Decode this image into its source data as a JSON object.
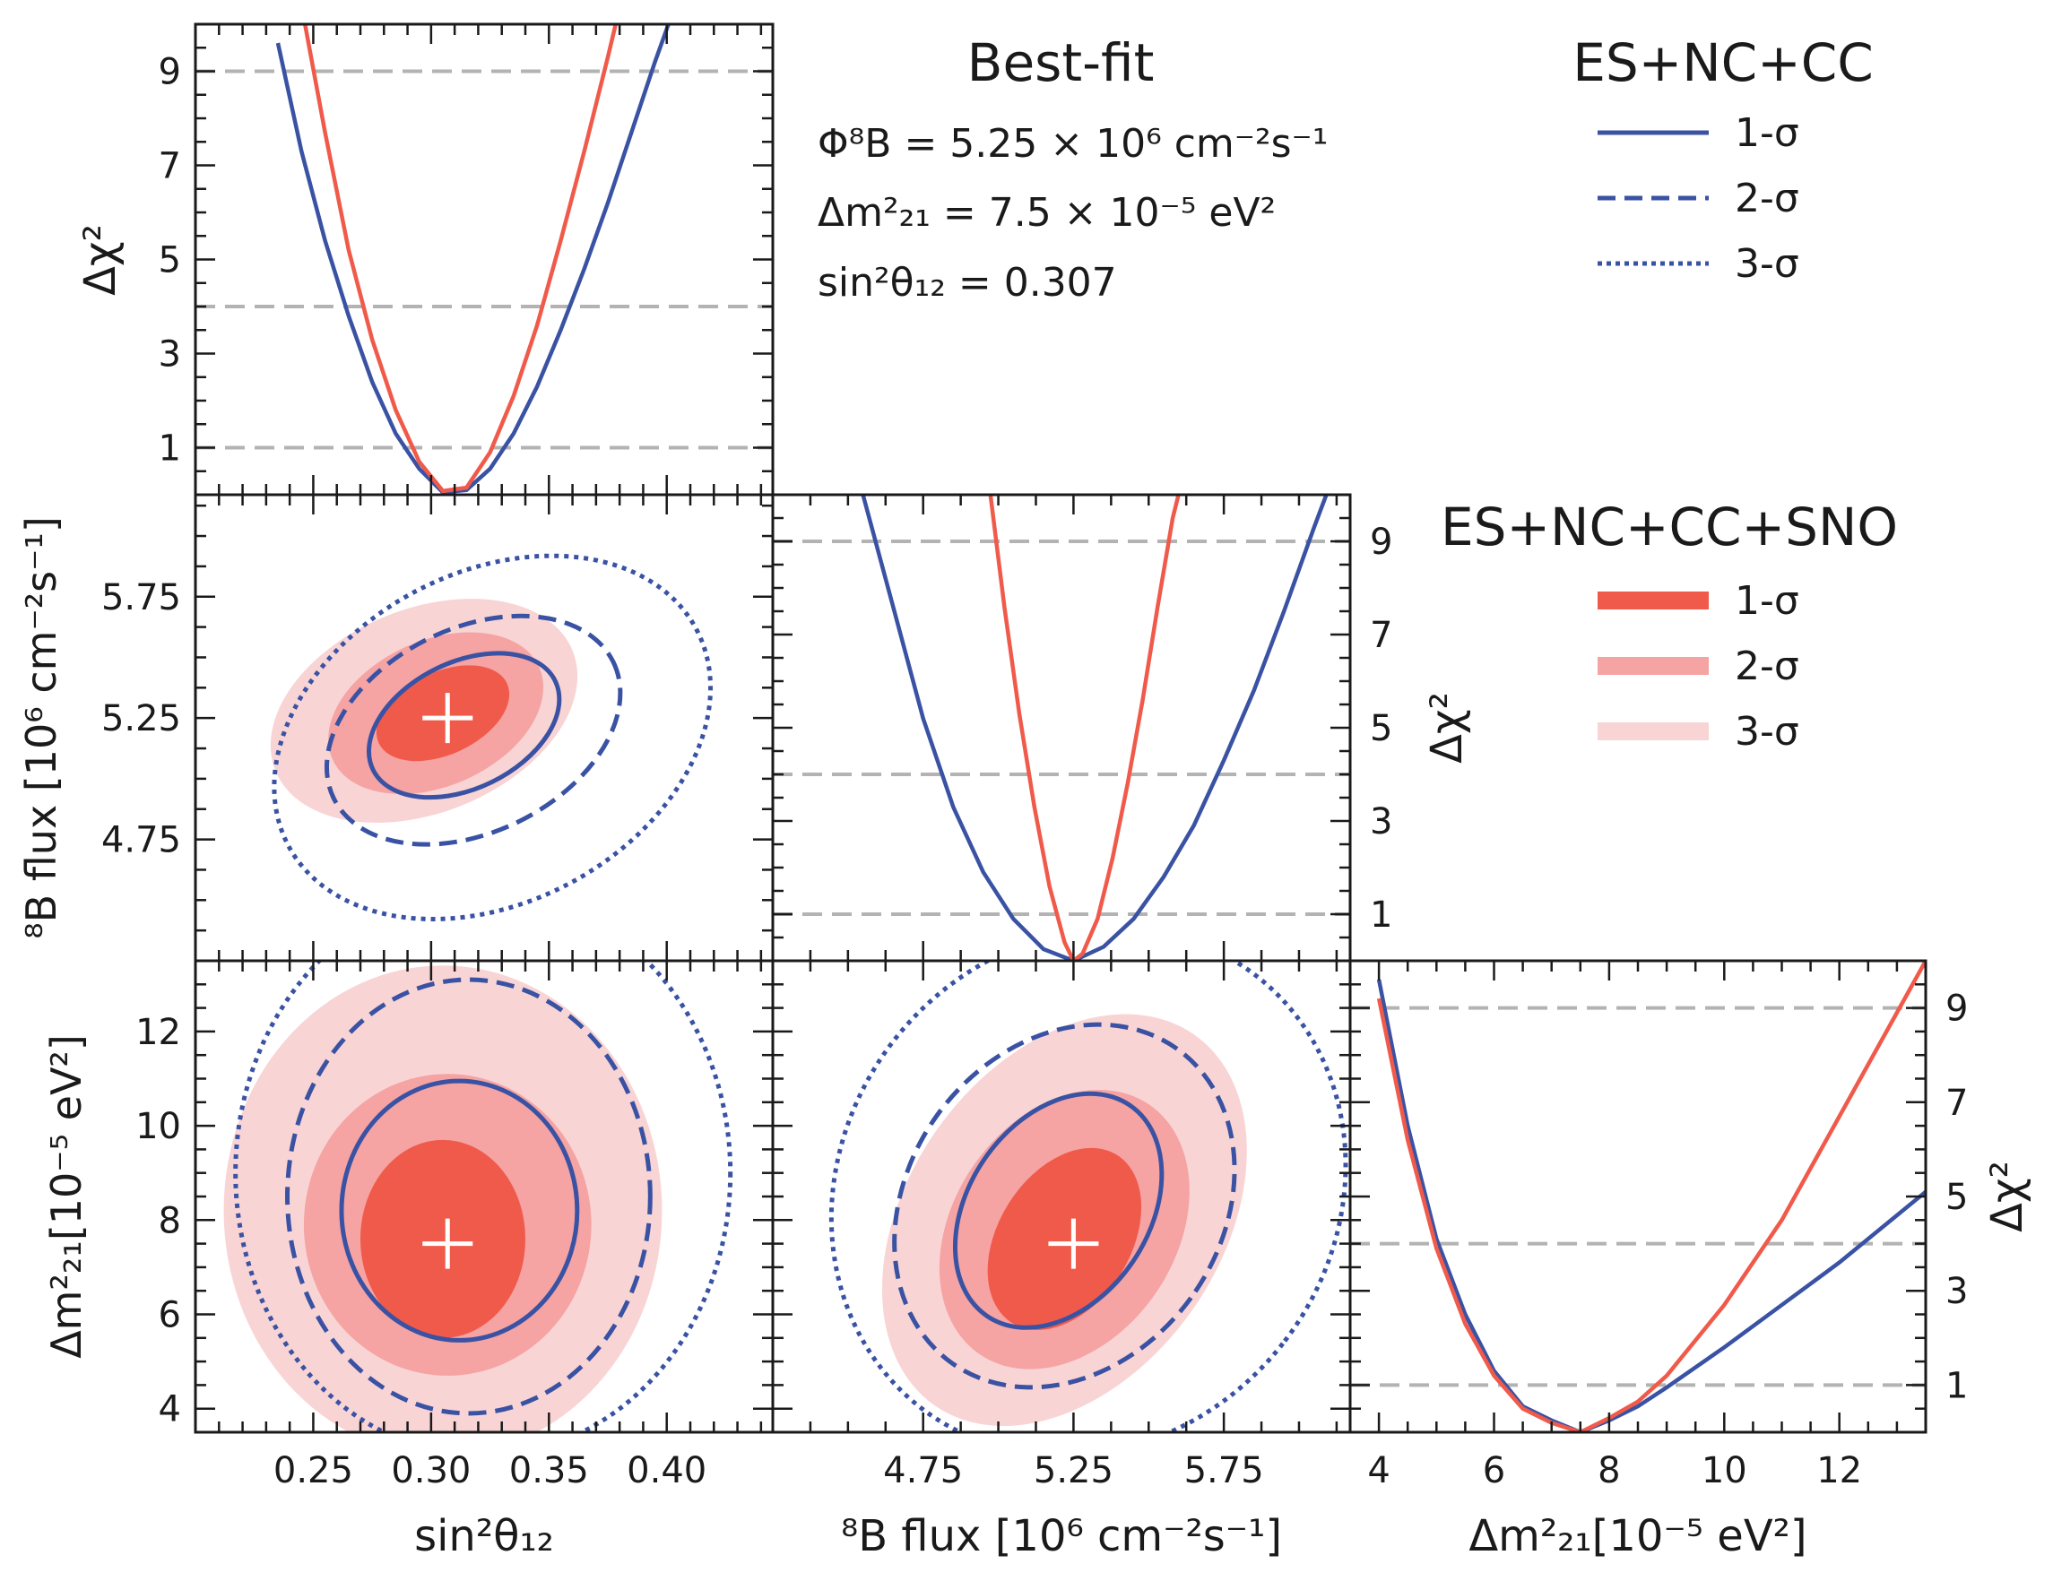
{
  "chart_data": {
    "type": "corner-plot",
    "colors": {
      "blue": "#3a52a3",
      "red1": "#f05a4a",
      "red2": "#f5a3a3",
      "red3": "#f9d4d4",
      "ref": "#b3b3b3"
    },
    "best_fit": {
      "title": "Best-fit",
      "lines": [
        "Φ⁸B = 5.25 × 10⁶ cm⁻²s⁻¹",
        "Δm²₂₁ = 7.5 × 10⁻⁵ eV²",
        "sin²θ₁₂ = 0.307"
      ],
      "flux": 5.25,
      "dm2": 7.5,
      "sin2": 0.307
    },
    "legends": [
      {
        "title": "ES+NC+CC",
        "entries": [
          {
            "label": "1-σ",
            "style": "solid"
          },
          {
            "label": "2-σ",
            "style": "dashed"
          },
          {
            "label": "3-σ",
            "style": "dotted"
          }
        ]
      },
      {
        "title": "ES+NC+CC+SNO",
        "entries": [
          {
            "label": "1-σ",
            "color": "#f05a4a"
          },
          {
            "label": "2-σ",
            "color": "#f5a3a3"
          },
          {
            "label": "3-σ",
            "color": "#f9d4d4"
          }
        ]
      }
    ],
    "axes": {
      "sin2": {
        "label": "sin²θ₁₂",
        "range": [
          0.2,
          0.445
        ],
        "ticks": [
          "0.25",
          "0.30",
          "0.35",
          "0.40"
        ]
      },
      "flux": {
        "label": "⁸B flux [10⁶ cm⁻²s⁻¹]",
        "range": [
          4.25,
          6.17
        ],
        "ticks": [
          "4.75",
          "5.25",
          "5.75"
        ]
      },
      "dm2": {
        "label": "Δm²₂₁[10⁻⁵ eV²]",
        "range": [
          3.5,
          13.5
        ],
        "ticks_x": [
          "4",
          "6",
          "8",
          "10",
          "12"
        ],
        "ticks_y": [
          "4",
          "6",
          "8",
          "10",
          "12"
        ]
      },
      "chi2": {
        "label": "Δχ²",
        "range": [
          0,
          10
        ],
        "ticks": [
          "1",
          "3",
          "5",
          "7",
          "9"
        ],
        "reference_lines": [
          1,
          4,
          9
        ]
      }
    },
    "profiles": {
      "sin2": {
        "x_min": 0.307,
        "blue": {
          "x": [
            0.235,
            0.245,
            0.255,
            0.265,
            0.275,
            0.285,
            0.295,
            0.305,
            0.315,
            0.325,
            0.335,
            0.345,
            0.355,
            0.365,
            0.375,
            0.385,
            0.395,
            0.405
          ],
          "y": [
            9.6,
            7.3,
            5.4,
            3.8,
            2.4,
            1.3,
            0.55,
            0.05,
            0.1,
            0.55,
            1.3,
            2.3,
            3.5,
            4.8,
            6.2,
            7.7,
            9.2,
            10.6
          ]
        },
        "red": {
          "x": [
            0.245,
            0.255,
            0.265,
            0.275,
            0.285,
            0.295,
            0.305,
            0.315,
            0.325,
            0.335,
            0.345,
            0.355,
            0.365,
            0.375,
            0.385
          ],
          "y": [
            10.4,
            7.7,
            5.2,
            3.3,
            1.8,
            0.7,
            0.08,
            0.15,
            0.9,
            2.1,
            3.6,
            5.4,
            7.3,
            9.3,
            11.4
          ]
        }
      },
      "flux": {
        "blue": {
          "x": [
            4.55,
            4.65,
            4.75,
            4.85,
            4.95,
            5.05,
            5.15,
            5.25,
            5.35,
            5.45,
            5.55,
            5.65,
            5.75,
            5.85,
            5.95,
            6.05,
            6.12
          ],
          "y": [
            10.0,
            7.6,
            5.2,
            3.3,
            1.9,
            0.9,
            0.25,
            0.0,
            0.3,
            0.9,
            1.8,
            2.9,
            4.3,
            5.8,
            7.5,
            9.3,
            10.5
          ]
        },
        "red": {
          "x": [
            4.97,
            5.02,
            5.07,
            5.12,
            5.17,
            5.22,
            5.25,
            5.28,
            5.33,
            5.38,
            5.43,
            5.48,
            5.53,
            5.58,
            5.63
          ],
          "y": [
            10.2,
            7.6,
            5.3,
            3.3,
            1.6,
            0.4,
            0.0,
            0.15,
            0.9,
            2.2,
            3.8,
            5.6,
            7.6,
            9.5,
            10.8
          ]
        }
      },
      "dm2": {
        "blue": {
          "x": [
            4.0,
            4.5,
            5.0,
            5.5,
            6.0,
            6.5,
            7.0,
            7.5,
            8.0,
            8.5,
            9.0,
            10.0,
            11.0,
            12.0,
            13.5
          ],
          "y": [
            9.6,
            6.5,
            4.1,
            2.5,
            1.3,
            0.55,
            0.25,
            0.0,
            0.25,
            0.55,
            0.95,
            1.8,
            2.7,
            3.6,
            5.1
          ]
        },
        "red": {
          "x": [
            4.0,
            4.5,
            5.0,
            5.5,
            6.0,
            6.5,
            7.0,
            7.5,
            8.0,
            8.5,
            9.0,
            10.0,
            11.0,
            12.0,
            13.0,
            13.5
          ],
          "y": [
            9.2,
            6.2,
            3.9,
            2.3,
            1.2,
            0.5,
            0.2,
            0.0,
            0.3,
            0.65,
            1.2,
            2.7,
            4.5,
            6.7,
            8.9,
            10.0
          ]
        }
      }
    },
    "contours": {
      "flux_vs_sin2": {
        "filled": [
          {
            "level": "3-σ",
            "center": [
              0.297,
              5.28
            ],
            "radii": [
              0.068,
              0.42
            ],
            "rotation": -22
          },
          {
            "level": "2-σ",
            "center": [
              0.302,
              5.27
            ],
            "radii": [
              0.048,
              0.3
            ],
            "rotation": -24
          },
          {
            "level": "1-σ",
            "center": [
              0.305,
              5.27
            ],
            "radii": [
              0.03,
              0.17
            ],
            "rotation": -25
          }
        ],
        "lines": [
          {
            "level": "1-σ",
            "center": [
              0.314,
              5.22
            ],
            "radii": [
              0.043,
              0.26
            ],
            "rotation": -26
          },
          {
            "level": "2-σ",
            "center": [
              0.318,
              5.2
            ],
            "radii": [
              0.066,
              0.42
            ],
            "rotation": -26
          },
          {
            "level": "3-σ",
            "center": [
              0.326,
              5.17
            ],
            "radii": [
              0.098,
              0.68
            ],
            "rotation": -28
          }
        ]
      },
      "dm2_vs_sin2": {
        "filled": [
          {
            "level": "3-σ",
            "center": [
              0.305,
              8.2
            ],
            "radii": [
              0.093,
              5.2
            ],
            "rotation": 0
          },
          {
            "level": "2-σ",
            "center": [
              0.307,
              7.9
            ],
            "radii": [
              0.061,
              3.2
            ],
            "rotation": 0
          },
          {
            "level": "1-σ",
            "center": [
              0.305,
              7.6
            ],
            "radii": [
              0.035,
              2.1
            ],
            "rotation": 0
          }
        ],
        "lines": [
          {
            "level": "1-σ",
            "center": [
              0.312,
              8.2
            ],
            "radii": [
              0.05,
              2.75
            ],
            "rotation": 0
          },
          {
            "level": "2-σ",
            "center": [
              0.316,
              8.5
            ],
            "radii": [
              0.077,
              4.6
            ],
            "rotation": 0
          },
          {
            "level": "3-σ",
            "center": [
              0.322,
              9.0
            ],
            "radii": [
              0.105,
              6.0
            ],
            "rotation": 0
          }
        ]
      },
      "dm2_vs_flux": {
        "filled": [
          {
            "level": "3-σ",
            "center": [
              5.22,
              8.0
            ],
            "radii": [
              0.52,
              4.8
            ],
            "rotation": 35
          },
          {
            "level": "2-σ",
            "center": [
              5.22,
              7.8
            ],
            "radii": [
              0.37,
              3.2
            ],
            "rotation": 34
          },
          {
            "level": "1-σ",
            "center": [
              5.22,
              7.6
            ],
            "radii": [
              0.22,
              2.1
            ],
            "rotation": 32
          }
        ],
        "lines": [
          {
            "level": "1-σ",
            "center": [
              5.2,
              8.2
            ],
            "radii": [
              0.3,
              2.7
            ],
            "rotation": 34
          },
          {
            "level": "2-σ",
            "center": [
              5.22,
              8.3
            ],
            "radii": [
              0.52,
              4.1
            ],
            "rotation": 36
          },
          {
            "level": "3-σ",
            "center": [
              5.3,
              8.6
            ],
            "radii": [
              0.82,
              5.8
            ],
            "rotation": 38
          }
        ]
      }
    }
  }
}
